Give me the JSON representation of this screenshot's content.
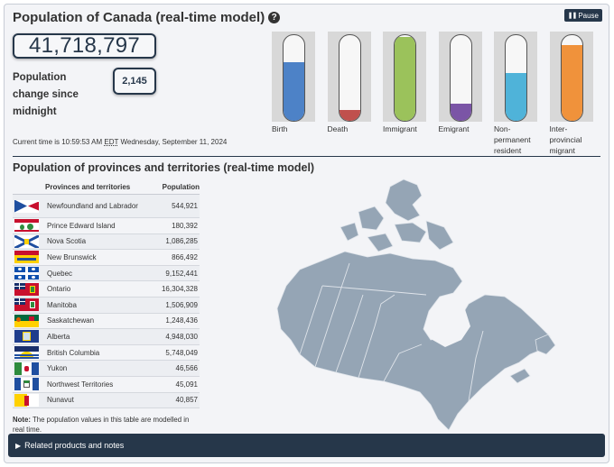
{
  "header": {
    "title": "Population of Canada (real-time model)",
    "help_icon": "?",
    "pause_label": "Pause"
  },
  "population": {
    "total": "41,718,797",
    "change_label": "Population change since midnight",
    "change_value": "2,145",
    "current_time_prefix": "Current time is 10:59:53 AM",
    "timezone": "EDT",
    "current_time_suffix": "Wednesday, September 11, 2024"
  },
  "tubes": [
    {
      "label": "Birth",
      "fill_fraction": 0.68,
      "color": "#4d82c7"
    },
    {
      "label": "Death",
      "fill_fraction": 0.13,
      "color": "#c0504d"
    },
    {
      "label": "Immigrant",
      "fill_fraction": 0.98,
      "color": "#9bc25b"
    },
    {
      "label": "Emigrant",
      "fill_fraction": 0.2,
      "color": "#7b55a6"
    },
    {
      "label": "Non-permanent resident",
      "fill_fraction": 0.56,
      "color": "#4fb3d9"
    },
    {
      "label": "Inter-provincial migrant",
      "fill_fraction": 0.88,
      "color": "#f0923b"
    }
  ],
  "provinces": {
    "title": "Population of provinces and territories (real-time model)",
    "col_name": "Provinces and territories",
    "col_pop": "Population",
    "rows": [
      {
        "name": "Newfoundland and Labrador",
        "population": "544,921",
        "flag": "newfoundland-flag"
      },
      {
        "name": "Prince Edward Island",
        "population": "180,392",
        "flag": "pei-flag"
      },
      {
        "name": "Nova Scotia",
        "population": "1,086,285",
        "flag": "nova-scotia-flag"
      },
      {
        "name": "New Brunswick",
        "population": "866,492",
        "flag": "new-brunswick-flag"
      },
      {
        "name": "Quebec",
        "population": "9,152,441",
        "flag": "quebec-flag"
      },
      {
        "name": "Ontario",
        "population": "16,304,328",
        "flag": "ontario-flag"
      },
      {
        "name": "Manitoba",
        "population": "1,506,909",
        "flag": "manitoba-flag"
      },
      {
        "name": "Saskatchewan",
        "population": "1,248,436",
        "flag": "saskatchewan-flag"
      },
      {
        "name": "Alberta",
        "population": "4,948,030",
        "flag": "alberta-flag"
      },
      {
        "name": "British Columbia",
        "population": "5,748,049",
        "flag": "british-columbia-flag"
      },
      {
        "name": "Yukon",
        "population": "46,566",
        "flag": "yukon-flag"
      },
      {
        "name": "Northwest Territories",
        "population": "45,091",
        "flag": "northwest-territories-flag"
      },
      {
        "name": "Nunavut",
        "population": "40,857",
        "flag": "nunavut-flag"
      }
    ],
    "note_label": "Note:",
    "note_text": "The population values in this table are modelled in real time."
  },
  "footer": {
    "label": "Related products and notes"
  },
  "colors": {
    "accent": "#26374a",
    "map_fill": "#95a5b5"
  }
}
